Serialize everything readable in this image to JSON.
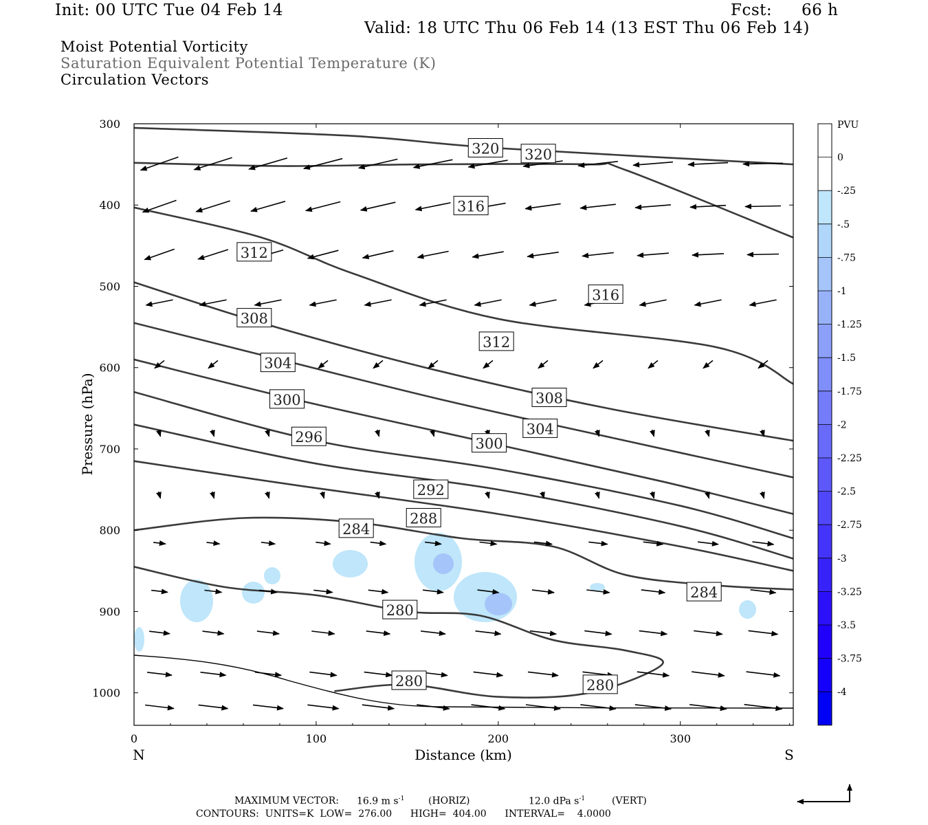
{
  "header": {
    "init": "Init: 00 UTC Tue 04 Feb 14",
    "fcst_label": "Fcst:",
    "fcst_value": "66 h",
    "valid": "Valid: 18 UTC Thu 06 Feb 14 (13 EST Thu 06 Feb 14)"
  },
  "fields": {
    "line1": "Moist Potential Vorticity",
    "line2": "Saturation Equivalent Potential Temperature (K)",
    "line3": "Circulation Vectors"
  },
  "footer": {
    "max_vector_label": "MAXIMUM VECTOR:",
    "max_horiz": "16.9 m s",
    "horiz_unit": "(HORIZ)",
    "max_vert": "12.0 dPa s",
    "vert_unit": "(VERT)",
    "sup": "-1",
    "contours_line": "CONTOURS:  UNITS=K  LOW=  276.00      HIGH=  404.00      INTERVAL=    4.0000"
  },
  "chart_data": {
    "type": "cross-section",
    "xlabel": "Distance (km)",
    "ylabel": "Pressure (hPa)",
    "xlim": [
      0,
      362
    ],
    "ylim": [
      1040,
      300
    ],
    "x_ticks": [
      "0",
      "100",
      "200",
      "300"
    ],
    "x_tick_values": [
      0,
      100,
      200,
      300
    ],
    "y_ticks": [
      "300",
      "400",
      "500",
      "600",
      "700",
      "800",
      "900",
      "1000"
    ],
    "y_tick_values": [
      300,
      400,
      500,
      600,
      700,
      800,
      900,
      1000
    ],
    "left_end_label": "N",
    "right_end_label": "S",
    "colorbar": {
      "title": "PVU",
      "labels": [
        "0",
        "-.25",
        "-.5",
        "-.75",
        "-1",
        "-1.25",
        "-1.5",
        "-1.75",
        "-2",
        "-2.25",
        "-2.5",
        "-2.75",
        "-3",
        "-3.25",
        "-3.5",
        "-3.75",
        "-4"
      ],
      "colors": [
        "#ffffff",
        "#ffffff",
        "#bfe6fa",
        "#b0d6fa",
        "#a4c4fa",
        "#98b2fa",
        "#8ca0fa",
        "#808efa",
        "#747cfa",
        "#686afa",
        "#5c58fa",
        "#5046fa",
        "#4434fa",
        "#3822fa",
        "#2c10fa",
        "#2000fa",
        "#1400fa",
        "#0000f5"
      ]
    },
    "theta_contour_labels": [
      {
        "label": "320",
        "x": 193,
        "p": 330
      },
      {
        "label": "320",
        "x": 222,
        "p": 337
      },
      {
        "label": "316",
        "x": 185,
        "p": 401
      },
      {
        "label": "316",
        "x": 259,
        "p": 510
      },
      {
        "label": "312",
        "x": 66,
        "p": 458
      },
      {
        "label": "312",
        "x": 199,
        "p": 568
      },
      {
        "label": "308",
        "x": 66,
        "p": 539
      },
      {
        "label": "308",
        "x": 228,
        "p": 637
      },
      {
        "label": "304",
        "x": 79,
        "p": 594
      },
      {
        "label": "304",
        "x": 223,
        "p": 675
      },
      {
        "label": "300",
        "x": 84,
        "p": 639
      },
      {
        "label": "300",
        "x": 195,
        "p": 693
      },
      {
        "label": "296",
        "x": 96,
        "p": 685
      },
      {
        "label": "292",
        "x": 163,
        "p": 750
      },
      {
        "label": "288",
        "x": 159,
        "p": 785
      },
      {
        "label": "284",
        "x": 122,
        "p": 798
      },
      {
        "label": "284",
        "x": 313,
        "p": 876
      },
      {
        "label": "280",
        "x": 146,
        "p": 898
      },
      {
        "label": "280",
        "x": 151,
        "p": 985
      },
      {
        "label": "280",
        "x": 256,
        "p": 990
      }
    ],
    "series": [
      {
        "theta": 320,
        "points": [
          [
            0,
            305
          ],
          [
            120,
            315
          ],
          [
            200,
            330
          ],
          [
            362,
            350
          ]
        ]
      },
      {
        "theta": 316,
        "points": [
          [
            0,
            348
          ],
          [
            80,
            352
          ],
          [
            160,
            350
          ],
          [
            250,
            350
          ],
          [
            270,
            357
          ],
          [
            362,
            440
          ]
        ]
      },
      {
        "theta": 312,
        "points": [
          [
            0,
            403
          ],
          [
            70,
            440
          ],
          [
            120,
            484
          ],
          [
            200,
            540
          ],
          [
            320,
            575
          ],
          [
            362,
            620
          ]
        ]
      },
      {
        "theta": 308,
        "points": [
          [
            0,
            495
          ],
          [
            70,
            545
          ],
          [
            160,
            600
          ],
          [
            260,
            650
          ],
          [
            362,
            690
          ]
        ]
      },
      {
        "theta": 304,
        "points": [
          [
            0,
            545
          ],
          [
            80,
            590
          ],
          [
            170,
            640
          ],
          [
            270,
            690
          ],
          [
            362,
            735
          ]
        ]
      },
      {
        "theta": 300,
        "points": [
          [
            0,
            590
          ],
          [
            90,
            640
          ],
          [
            190,
            690
          ],
          [
            290,
            740
          ],
          [
            362,
            780
          ]
        ]
      },
      {
        "theta": 296,
        "points": [
          [
            0,
            630
          ],
          [
            100,
            690
          ],
          [
            200,
            725
          ],
          [
            300,
            770
          ],
          [
            362,
            810
          ]
        ]
      },
      {
        "theta": 292,
        "points": [
          [
            0,
            670
          ],
          [
            100,
            718
          ],
          [
            200,
            750
          ],
          [
            300,
            795
          ],
          [
            362,
            835
          ]
        ]
      },
      {
        "theta": 288,
        "points": [
          [
            0,
            715
          ],
          [
            90,
            745
          ],
          [
            200,
            780
          ],
          [
            300,
            820
          ],
          [
            362,
            850
          ]
        ]
      }
    ],
    "sections": [
      {
        "theta": 284,
        "points": [
          [
            0,
            800
          ],
          [
            60,
            785
          ],
          [
            120,
            790
          ],
          [
            180,
            810
          ],
          [
            230,
            820
          ],
          [
            270,
            855
          ],
          [
            320,
            868
          ],
          [
            362,
            873
          ]
        ]
      },
      {
        "theta": 280,
        "points": [
          [
            0,
            845
          ],
          [
            50,
            870
          ],
          [
            100,
            880
          ],
          [
            150,
            900
          ],
          [
            190,
            905
          ],
          [
            230,
            935
          ],
          [
            270,
            948
          ],
          [
            290,
            965
          ],
          [
            250,
            1000
          ],
          [
            200,
            1005
          ],
          [
            150,
            990
          ],
          [
            110,
            998
          ]
        ]
      }
    ]
  }
}
